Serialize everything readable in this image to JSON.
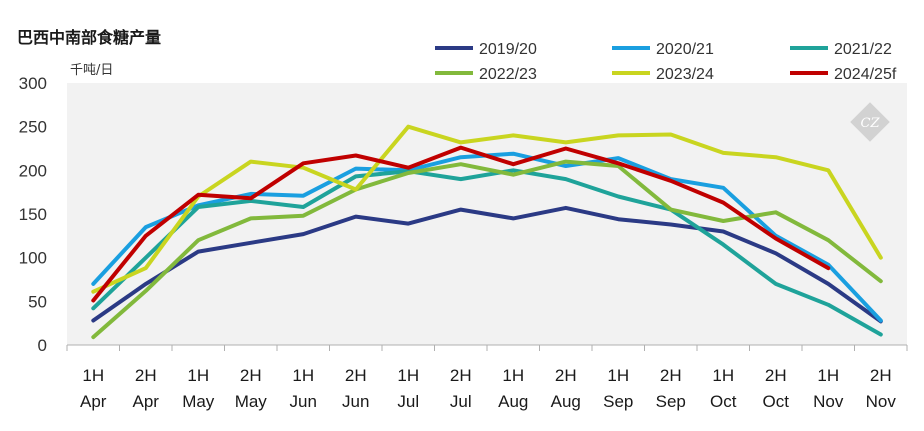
{
  "chart_data": {
    "type": "line",
    "title": "巴西中南部食糖产量",
    "ylabel": "千吨/日",
    "xlabel": "",
    "ylim": [
      0,
      300
    ],
    "yticks": [
      0,
      50,
      100,
      150,
      200,
      250,
      300
    ],
    "categories": [
      {
        "half": "1H",
        "month": "Apr"
      },
      {
        "half": "2H",
        "month": "Apr"
      },
      {
        "half": "1H",
        "month": "May"
      },
      {
        "half": "2H",
        "month": "May"
      },
      {
        "half": "1H",
        "month": "Jun"
      },
      {
        "half": "2H",
        "month": "Jun"
      },
      {
        "half": "1H",
        "month": "Jul"
      },
      {
        "half": "2H",
        "month": "Jul"
      },
      {
        "half": "1H",
        "month": "Aug"
      },
      {
        "half": "2H",
        "month": "Aug"
      },
      {
        "half": "1H",
        "month": "Sep"
      },
      {
        "half": "2H",
        "month": "Sep"
      },
      {
        "half": "1H",
        "month": "Oct"
      },
      {
        "half": "2H",
        "month": "Oct"
      },
      {
        "half": "1H",
        "month": "Nov"
      },
      {
        "half": "2H",
        "month": "Nov"
      }
    ],
    "series": [
      {
        "name": "2019/20",
        "color": "#2b3a85",
        "values": [
          28,
          70,
          107,
          117,
          127,
          147,
          139,
          155,
          145,
          157,
          144,
          138,
          130,
          105,
          70,
          27
        ]
      },
      {
        "name": "2020/21",
        "color": "#1a9fe0",
        "values": [
          70,
          135,
          160,
          173,
          171,
          202,
          200,
          215,
          219,
          205,
          214,
          190,
          180,
          125,
          92,
          28
        ]
      },
      {
        "name": "2021/22",
        "color": "#1fa39a",
        "values": [
          42,
          100,
          158,
          165,
          158,
          193,
          199,
          190,
          200,
          190,
          170,
          155,
          115,
          70,
          46,
          12
        ]
      },
      {
        "name": "2022/23",
        "color": "#82b93c",
        "values": [
          9,
          62,
          120,
          145,
          148,
          178,
          197,
          207,
          195,
          210,
          205,
          155,
          142,
          152,
          120,
          73
        ]
      },
      {
        "name": "2023/24",
        "color": "#c9d520",
        "values": [
          61,
          88,
          170,
          210,
          203,
          178,
          250,
          232,
          240,
          232,
          240,
          241,
          220,
          215,
          200,
          100
        ]
      },
      {
        "name": "2024/25f",
        "color": "#c00000",
        "values": [
          51,
          125,
          172,
          168,
          208,
          217,
          203,
          226,
          207,
          225,
          208,
          188,
          163,
          122,
          88,
          null
        ]
      }
    ],
    "grid": false,
    "legend_position": "top-right"
  },
  "watermark": {
    "text": "CZ",
    "color": "#c8c8c8"
  }
}
